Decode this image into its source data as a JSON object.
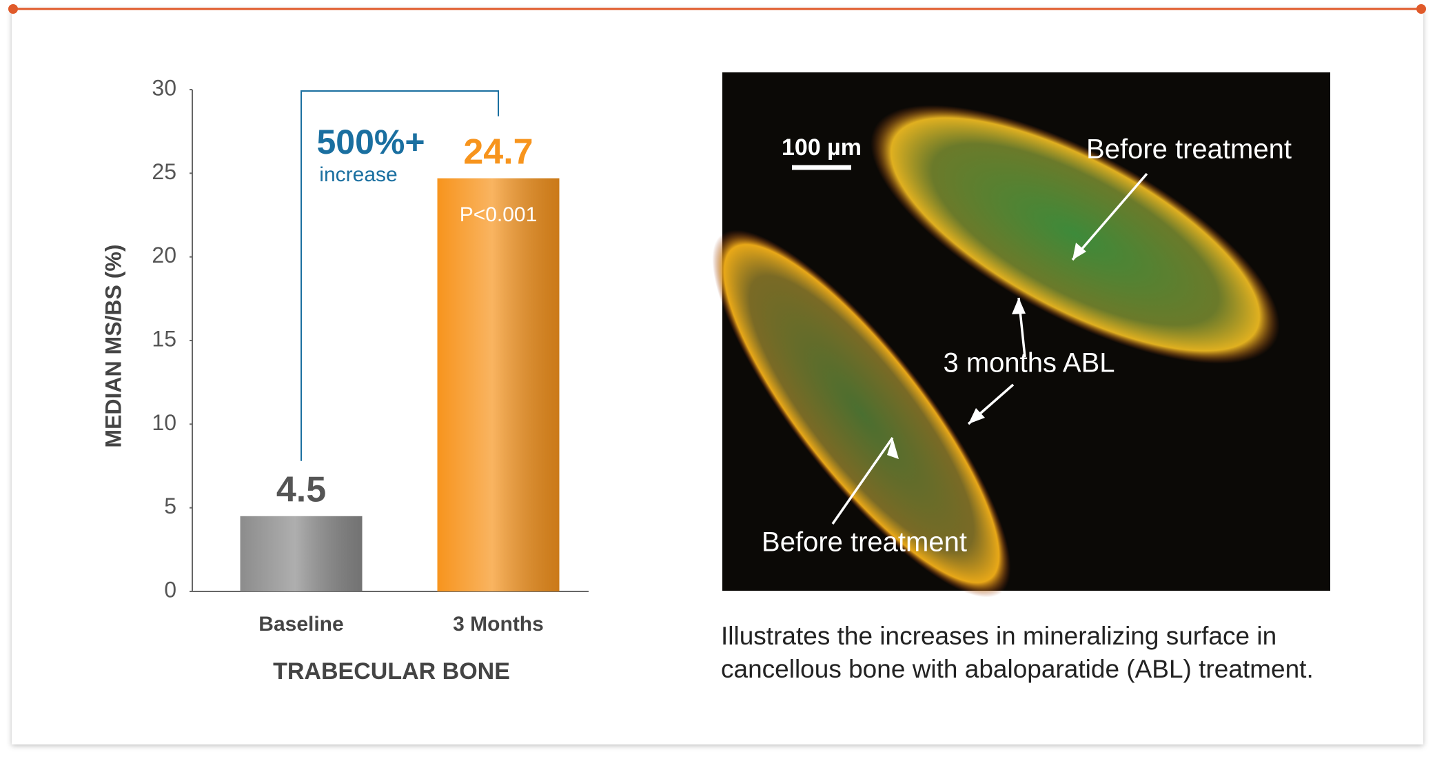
{
  "chart_data": {
    "type": "bar",
    "y_label": "MEDIAN MS/BS (%)",
    "x_label": "TRABECULAR BONE",
    "categories": [
      "Baseline",
      "3 Months"
    ],
    "values": [
      4.5,
      24.7
    ],
    "colors": [
      "#8c8c8c",
      "#f7941d"
    ],
    "ylim": [
      0,
      30
    ],
    "yticks": [
      0,
      5,
      10,
      15,
      20,
      25,
      30
    ],
    "annotations": {
      "change": "500%+",
      "change_note": "increase",
      "p_value": "P<0.001"
    }
  },
  "micrograph": {
    "scale_label": "100 µm",
    "labels": [
      "Before treatment",
      "3 months ABL",
      "Before treatment"
    ]
  },
  "caption": [
    "Illustrates the increases in mineralizing surface in",
    "cancellous bone with abaloparatide (ABL) treatment."
  ]
}
